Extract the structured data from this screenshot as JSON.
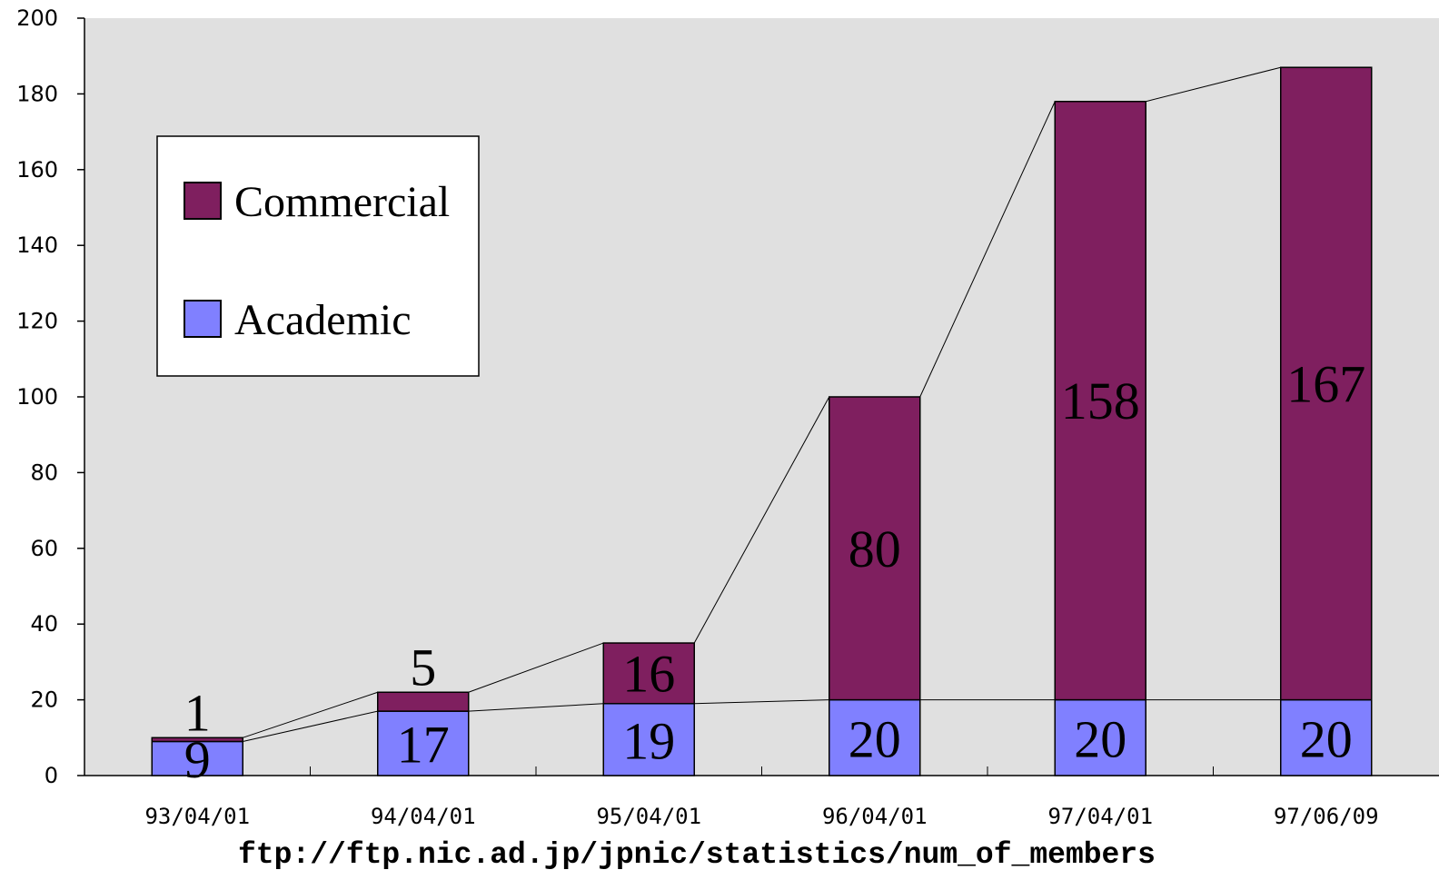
{
  "chart_data": {
    "type": "bar",
    "stacked": true,
    "categories": [
      "93/04/01",
      "94/04/01",
      "95/04/01",
      "96/04/01",
      "97/04/01",
      "97/06/09"
    ],
    "series": [
      {
        "name": "Academic",
        "values": [
          9,
          17,
          19,
          20,
          20,
          20
        ],
        "color": "#8080FF"
      },
      {
        "name": "Commercial",
        "values": [
          1,
          5,
          16,
          80,
          158,
          167
        ],
        "color": "#7F1F5F"
      }
    ],
    "ylim": [
      0,
      200
    ],
    "yticks": [
      0,
      20,
      40,
      60,
      80,
      100,
      120,
      140,
      160,
      180,
      200
    ],
    "xlabel": "",
    "ylabel": "",
    "title": "",
    "legend": {
      "entries": [
        "Commercial",
        "Academic"
      ],
      "placement": "top-left"
    },
    "plot_background": "#E0E0E0",
    "series_lines": true,
    "data_labels": true
  },
  "source": "ftp://ftp.nic.ad.jp/jpnic/statistics/num_of_members"
}
